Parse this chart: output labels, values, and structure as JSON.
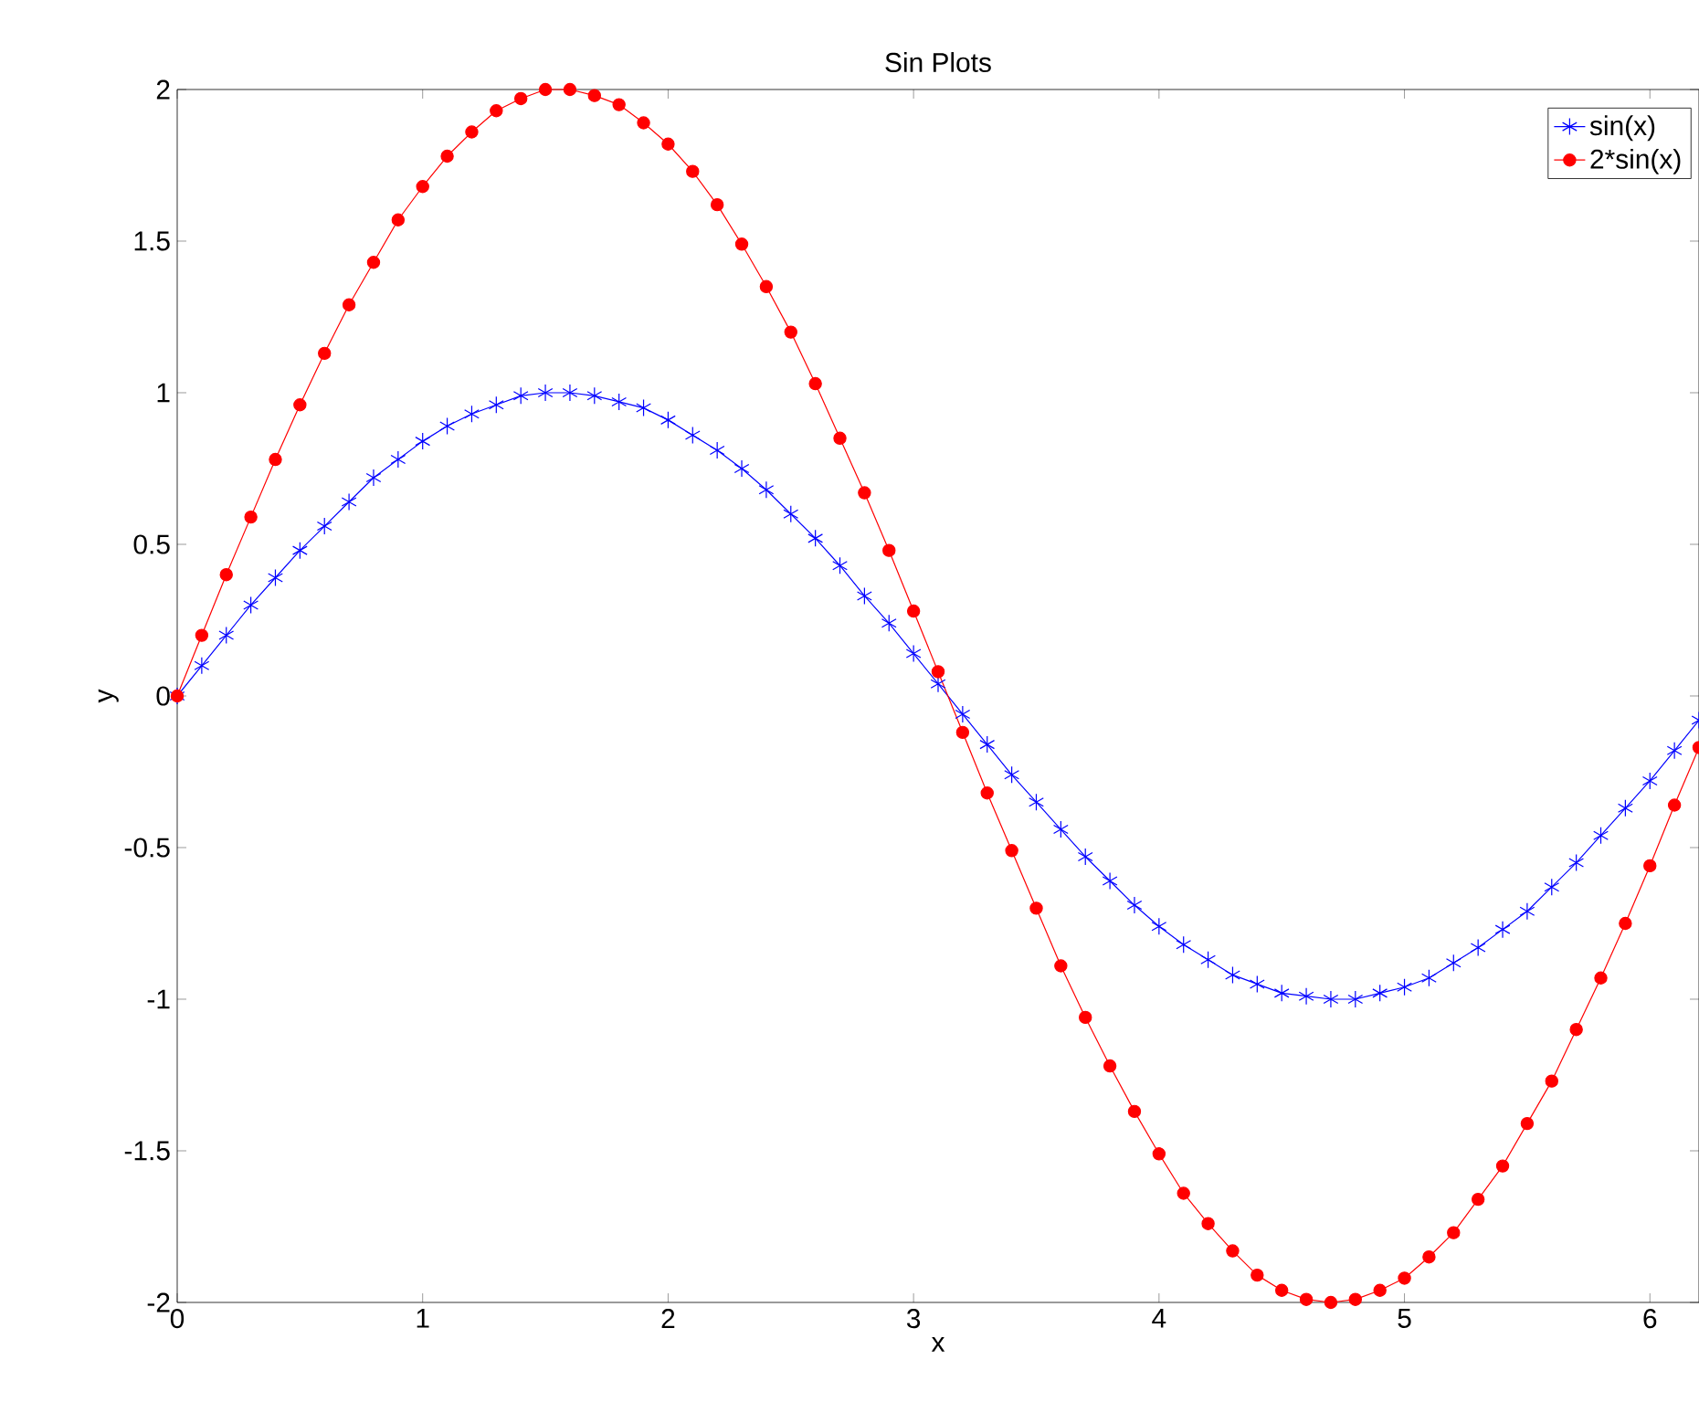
{
  "chart_data": {
    "type": "line",
    "title": "Sin Plots",
    "xlabel": "x",
    "ylabel": "y",
    "x": [
      0,
      0.1,
      0.2,
      0.3,
      0.4,
      0.5,
      0.6,
      0.7,
      0.8,
      0.9,
      1.0,
      1.1,
      1.2,
      1.3,
      1.4,
      1.5,
      1.6,
      1.7,
      1.8,
      1.9,
      2.0,
      2.1,
      2.2,
      2.3,
      2.4,
      2.5,
      2.6,
      2.7,
      2.8,
      2.9,
      3.0,
      3.1,
      3.2,
      3.3,
      3.4,
      3.5,
      3.6,
      3.7,
      3.8,
      3.9,
      4.0,
      4.1,
      4.2,
      4.3,
      4.4,
      4.5,
      4.6,
      4.7,
      4.8,
      4.9,
      5.0,
      5.1,
      5.2,
      5.3,
      5.4,
      5.5,
      5.6,
      5.7,
      5.8,
      5.9,
      6.0,
      6.1,
      6.2
    ],
    "series": [
      {
        "name": "sin(x)",
        "color": "#0000ff",
        "marker": "cross",
        "values": [
          0,
          0.1,
          0.2,
          0.3,
          0.39,
          0.48,
          0.56,
          0.64,
          0.72,
          0.78,
          0.84,
          0.89,
          0.93,
          0.96,
          0.99,
          1.0,
          1.0,
          0.99,
          0.97,
          0.95,
          0.91,
          0.86,
          0.81,
          0.75,
          0.68,
          0.6,
          0.52,
          0.43,
          0.33,
          0.24,
          0.14,
          0.04,
          -0.06,
          -0.16,
          -0.26,
          -0.35,
          -0.44,
          -0.53,
          -0.61,
          -0.69,
          -0.76,
          -0.82,
          -0.87,
          -0.92,
          -0.95,
          -0.98,
          -0.99,
          -1.0,
          -1.0,
          -0.98,
          -0.96,
          -0.93,
          -0.88,
          -0.83,
          -0.77,
          -0.71,
          -0.63,
          -0.55,
          -0.46,
          -0.37,
          -0.28,
          -0.18,
          -0.08
        ]
      },
      {
        "name": "2*sin(x)",
        "color": "#ff0000",
        "marker": "circle",
        "values": [
          0,
          0.2,
          0.4,
          0.59,
          0.78,
          0.96,
          1.13,
          1.29,
          1.43,
          1.57,
          1.68,
          1.78,
          1.86,
          1.93,
          1.97,
          2.0,
          2.0,
          1.98,
          1.95,
          1.89,
          1.82,
          1.73,
          1.62,
          1.49,
          1.35,
          1.2,
          1.03,
          0.85,
          0.67,
          0.48,
          0.28,
          0.08,
          -0.12,
          -0.32,
          -0.51,
          -0.7,
          -0.89,
          -1.06,
          -1.22,
          -1.37,
          -1.51,
          -1.64,
          -1.74,
          -1.83,
          -1.91,
          -1.96,
          -1.99,
          -2.0,
          -1.99,
          -1.96,
          -1.92,
          -1.85,
          -1.77,
          -1.66,
          -1.55,
          -1.41,
          -1.27,
          -1.1,
          -0.93,
          -0.75,
          -0.56,
          -0.36,
          -0.17
        ]
      }
    ],
    "xlim": [
      0,
      6.2
    ],
    "ylim": [
      -2,
      2
    ],
    "xticks": [
      0,
      1,
      2,
      3,
      4,
      5,
      6
    ],
    "yticks": [
      -2,
      -1.5,
      -1,
      -0.5,
      0,
      0.5,
      1,
      1.5,
      2
    ],
    "grid": false,
    "legend": "top right",
    "line_style": "solid"
  }
}
